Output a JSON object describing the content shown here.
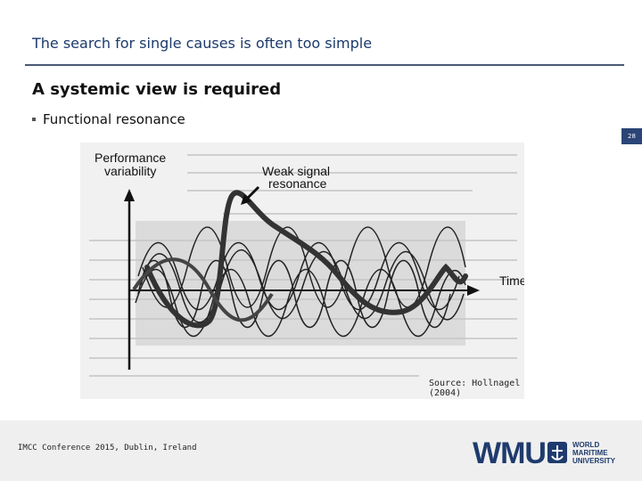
{
  "slide": {
    "title": "The search for single causes is often too simple",
    "subtitle": "A systemic view is required",
    "bullet": "Functional resonance",
    "page_number": "28"
  },
  "figure": {
    "label_performance": [
      "Performance",
      "variability"
    ],
    "label_weak_signal": [
      "Weak signal",
      "resonance"
    ],
    "label_time": "Time",
    "source": "Source: Hollnagel (2004)"
  },
  "footer": {
    "conference": "IMCC Conference 2015, Dublin, Ireland",
    "logo_mark": "WMU",
    "logo_words": [
      "WORLD",
      "MARITIME",
      "UNIVERSITY"
    ]
  },
  "colors": {
    "title": "#1b3a6b",
    "rule": "#4a5a74",
    "badge": "#2a4576",
    "logo": "#1f3b6d"
  }
}
